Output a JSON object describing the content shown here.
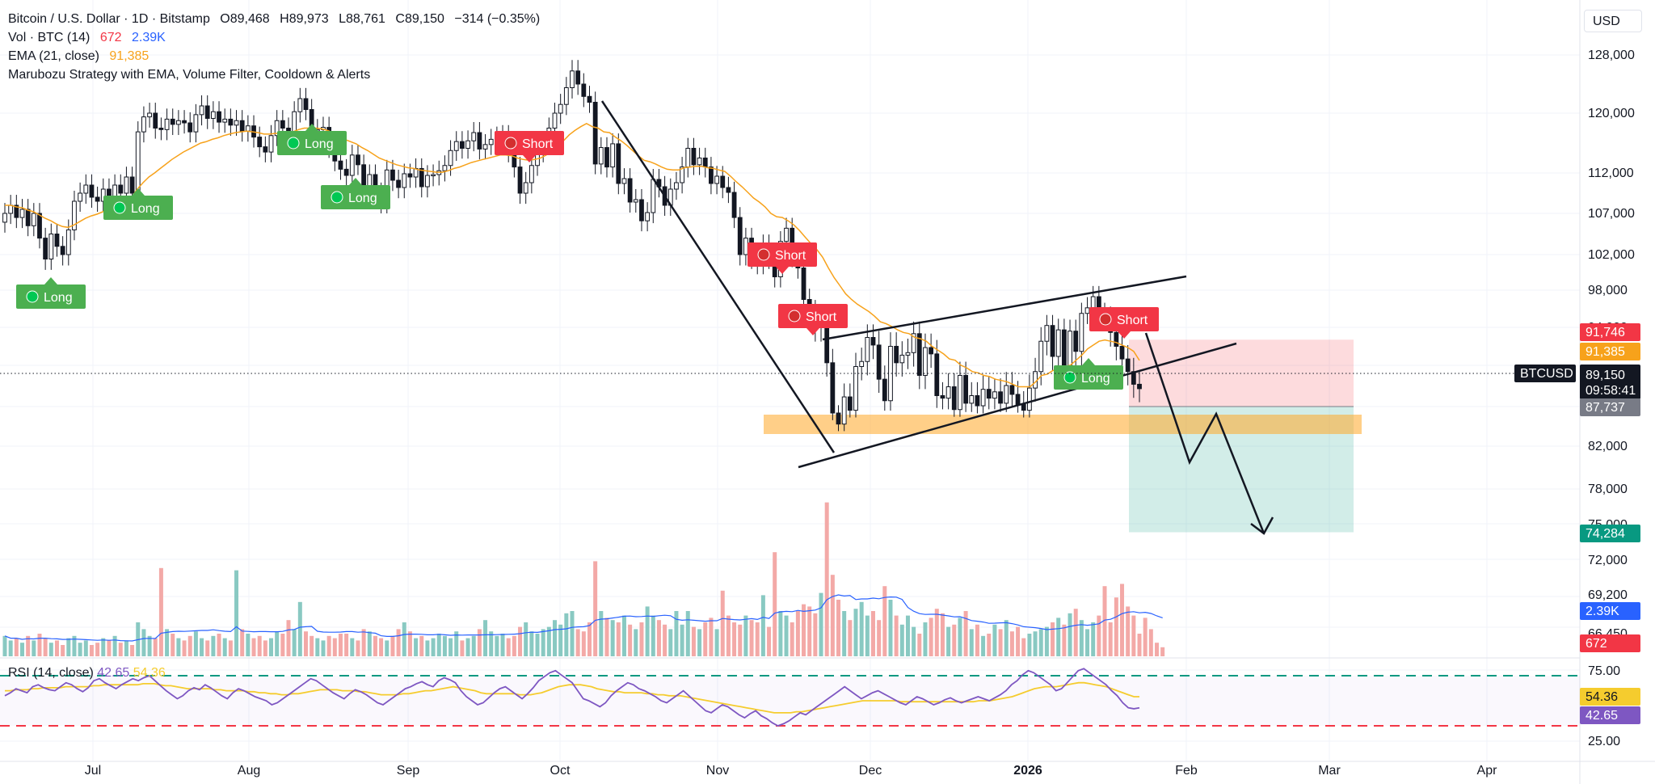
{
  "header": {
    "symbol": "Bitcoin / U.S. Dollar · 1D · Bitstamp",
    "open": "O89,468",
    "high": "H89,973",
    "low": "L88,761",
    "close": "C89,150",
    "change": "−314 (−0.35%)",
    "vol_label": "Vol · BTC (14)",
    "vol_value": "672",
    "vol_ma": "2.39K",
    "ema_label": "EMA (21, close)",
    "ema_value": "91,385",
    "strategy_label": "Marubozu Strategy with EMA, Volume Filter, Cooldown & Alerts"
  },
  "currency": "USD",
  "rsi": {
    "label": "RSI (14, close)",
    "value": "42.65",
    "ma_value": "54.36",
    "axis": [
      "75.00",
      "25.00"
    ],
    "rsi_series": [
      55,
      58,
      62,
      60,
      58,
      64,
      66,
      63,
      61,
      60,
      64,
      68,
      66,
      62,
      59,
      63,
      70,
      72,
      68,
      65,
      62,
      66,
      69,
      72,
      70,
      73,
      75,
      70,
      65,
      60,
      56,
      52,
      55,
      60,
      63,
      61,
      66,
      63,
      59,
      55,
      52,
      58,
      62,
      60,
      57,
      54,
      52,
      50,
      46,
      48,
      52,
      56,
      60,
      64,
      68,
      72,
      70,
      66,
      62,
      58,
      55,
      52,
      57,
      61,
      59,
      56,
      52,
      48,
      46,
      50,
      54,
      58,
      62,
      64,
      67,
      69,
      66,
      64,
      70,
      73,
      71,
      68,
      60,
      54,
      50,
      46,
      48,
      53,
      58,
      62,
      64,
      60,
      56,
      52,
      57,
      63,
      70,
      74,
      78,
      80,
      76,
      72,
      68,
      60,
      52,
      50,
      47,
      44,
      48,
      55,
      60,
      64,
      68,
      66,
      62,
      60,
      57,
      54,
      50,
      48,
      52,
      56,
      60,
      55,
      50,
      45,
      40,
      38,
      42,
      46,
      44,
      40,
      36,
      33,
      37,
      40,
      35,
      32,
      28,
      25,
      27,
      30,
      34,
      38,
      36,
      40,
      44,
      48,
      52,
      56,
      60,
      64,
      60,
      56,
      52,
      55,
      58,
      60,
      57,
      54,
      51,
      48,
      46,
      50,
      54,
      52,
      49,
      46,
      48,
      51,
      53,
      50,
      48,
      50,
      52,
      54,
      52,
      50,
      53,
      56,
      60,
      66,
      70,
      76,
      80,
      78,
      74,
      70,
      66,
      60,
      62,
      68,
      74,
      80,
      82,
      78,
      74,
      70,
      66,
      60,
      55,
      48,
      43,
      42,
      43
    ],
    "ma_series": [
      60,
      60,
      61,
      61,
      61,
      62,
      62,
      63,
      63,
      63,
      63,
      64,
      64,
      64,
      64,
      64,
      65,
      65,
      66,
      66,
      66,
      66,
      66,
      66,
      66,
      67,
      67,
      67,
      66,
      65,
      65,
      64,
      63,
      62,
      62,
      62,
      62,
      62,
      61,
      61,
      60,
      60,
      60,
      60,
      59,
      59,
      58,
      58,
      57,
      57,
      56,
      56,
      57,
      57,
      58,
      59,
      60,
      61,
      61,
      61,
      61,
      60,
      60,
      60,
      59,
      59,
      58,
      57,
      56,
      56,
      56,
      56,
      57,
      57,
      58,
      59,
      60,
      60,
      61,
      62,
      63,
      64,
      63,
      62,
      61,
      60,
      58,
      57,
      57,
      57,
      57,
      57,
      57,
      56,
      56,
      56,
      57,
      58,
      60,
      62,
      64,
      65,
      66,
      66,
      66,
      65,
      64,
      62,
      61,
      60,
      59,
      59,
      58,
      58,
      58,
      58,
      57,
      57,
      56,
      56,
      55,
      55,
      55,
      54,
      53,
      52,
      51,
      50,
      49,
      48,
      47,
      46,
      45,
      44,
      43,
      42,
      41,
      40,
      39,
      38,
      38,
      38,
      38,
      39,
      39,
      40,
      41,
      42,
      43,
      44,
      45,
      46,
      47,
      48,
      49,
      50,
      50,
      50,
      50,
      50,
      50,
      50,
      49,
      49,
      49,
      49,
      49,
      49,
      49,
      49,
      49,
      49,
      49,
      49,
      49,
      49,
      50,
      50,
      50,
      51,
      52,
      53,
      54,
      56,
      58,
      60,
      62,
      63,
      64,
      64,
      64,
      65,
      66,
      67,
      68,
      68,
      67,
      66,
      65,
      64,
      62,
      60,
      58,
      56,
      54,
      54
    ]
  },
  "price_axis": [
    "128,000",
    "120,000",
    "112,000",
    "107,000",
    "102,000",
    "98,000",
    "94,000",
    "87,737",
    "82,000",
    "78,000",
    "75,000",
    "72,000",
    "69,200",
    "66,450"
  ],
  "price_tags": {
    "tp_red": "91,746",
    "ema": "91,385",
    "symbol": "BTCUSD",
    "last": "89,150",
    "countdown": "09:58:41",
    "entry": "87,737",
    "target": "74,284",
    "vol_ma": "2.39K",
    "vol": "672",
    "rsi_ma": "54.36",
    "rsi": "42.65"
  },
  "time_axis": [
    "Jul",
    "Aug",
    "Sep",
    "Oct",
    "Nov",
    "Dec",
    "2026",
    "Feb",
    "Mar",
    "Apr"
  ],
  "signals": [
    {
      "label": "Long",
      "type": "long"
    },
    {
      "label": "Long",
      "type": "long"
    },
    {
      "label": "Long",
      "type": "long"
    },
    {
      "label": "Long",
      "type": "long"
    },
    {
      "label": "Short",
      "type": "short"
    },
    {
      "label": "Short",
      "type": "short"
    },
    {
      "label": "Short",
      "type": "short"
    },
    {
      "label": "Long",
      "type": "long"
    },
    {
      "label": "Short",
      "type": "short"
    }
  ],
  "colors": {
    "up": "#26a69a",
    "down": "#ef5350",
    "up_vol": "#89c9c2",
    "down_vol": "#f3a9a7",
    "ema": "#f7a21b",
    "vol_ma": "#2962ff",
    "rsi": "#7e57c2",
    "rsi_ma": "#f5cc2e",
    "long_label": "#4caf50",
    "short_label": "#f23645"
  },
  "chart_data": {
    "type": "candlestick",
    "series": [
      {
        "name": "Bitcoin / U.S. Dollar",
        "close": [
          107000,
          108000,
          106500,
          107500,
          105500,
          107000,
          104000,
          101500,
          104500,
          103000,
          102000,
          105000,
          108500,
          109500,
          110500,
          109000,
          108500,
          110000,
          108800,
          110500,
          109500,
          111500,
          109500,
          117500,
          119500,
          120000,
          118000,
          117800,
          119200,
          118500,
          119000,
          118700,
          117500,
          119800,
          121000,
          119300,
          120200,
          118800,
          119200,
          118400,
          119000,
          117600,
          118300,
          116800,
          115500,
          114800,
          117000,
          119000,
          118000,
          116800,
          120200,
          122000,
          120500,
          117600,
          117800,
          118100,
          115400,
          113600,
          112500,
          111700,
          114400,
          113100,
          110200,
          111800,
          109500,
          108300,
          112400,
          111100,
          110200,
          111900,
          111500,
          112600,
          110300,
          111700,
          111800,
          112300,
          113000,
          115000,
          116200,
          115300,
          116300,
          117400,
          115200,
          115800,
          116500,
          116800,
          117000,
          114800,
          112800,
          109500,
          110800,
          113000,
          114800,
          116200,
          118000,
          120000,
          121200,
          123500,
          125800,
          124000,
          122300,
          121500,
          113200,
          115400,
          112800,
          115900,
          110700,
          111300,
          108400,
          108700,
          106100,
          107100,
          111200,
          110300,
          108000,
          110000,
          110800,
          112800,
          115300,
          113100,
          114000,
          112800,
          110700,
          111600,
          110200,
          109600,
          106500,
          102000,
          104000,
          101600,
          101000,
          103200,
          101600,
          99500,
          103600,
          105200,
          101800,
          100500,
          97000,
          95800,
          94000,
          95200,
          91200,
          86800,
          85200,
          88500,
          87200,
          90900,
          91300,
          93200,
          92600,
          89900,
          88200,
          92500,
          91200,
          91800,
          92000,
          93500,
          90200,
          92400,
          91900,
          88600,
          88400,
          89300,
          87300,
          90200,
          88000,
          88600,
          87800,
          89100,
          88400,
          88900,
          88000,
          89400,
          88700,
          87900,
          87200,
          89200,
          90500,
          92900,
          94200,
          91700,
          93800,
          90700,
          93700,
          92100,
          95500,
          96100,
          97300,
          95500,
          95100,
          93600,
          92500,
          91500,
          90500,
          89500,
          89150
        ]
      }
    ],
    "volume": [
      0.9,
      0.7,
      0.8,
      0.6,
      0.9,
      0.7,
      1.0,
      0.8,
      0.6,
      0.7,
      0.5,
      0.8,
      0.9,
      0.6,
      0.7,
      0.5,
      0.6,
      0.8,
      0.7,
      0.9,
      0.6,
      0.7,
      0.5,
      1.5,
      1.2,
      0.9,
      0.8,
      3.9,
      1.2,
      1.0,
      0.8,
      0.7,
      0.9,
      1.1,
      0.8,
      0.7,
      0.9,
      1.0,
      0.8,
      0.7,
      3.8,
      1.2,
      1.0,
      0.8,
      0.9,
      0.7,
      0.8,
      1.1,
      1.0,
      1.6,
      1.2,
      2.4,
      1.1,
      0.9,
      0.8,
      0.7,
      0.9,
      0.8,
      1.0,
      1.0,
      0.8,
      0.7,
      1.2,
      1.1,
      0.9,
      0.8,
      0.7,
      0.9,
      1.2,
      1.5,
      1.1,
      0.8,
      0.9,
      0.7,
      0.8,
      1.0,
      0.9,
      0.8,
      1.1,
      0.7,
      0.8,
      0.9,
      1.2,
      1.6,
      1.1,
      0.9,
      1.0,
      0.8,
      0.9,
      1.3,
      1.5,
      1.1,
      1.0,
      1.2,
      1.3,
      1.6,
      1.4,
      1.9,
      2.0,
      1.2,
      1.1,
      1.5,
      4.2,
      2.0,
      1.7,
      1.6,
      1.5,
      1.8,
      1.4,
      1.2,
      1.5,
      2.2,
      1.8,
      1.6,
      1.4,
      1.2,
      2.0,
      1.4,
      2.0,
      1.3,
      1.2,
      1.5,
      1.7,
      1.2,
      2.9,
      1.8,
      1.5,
      1.4,
      1.8,
      1.6,
      1.5,
      2.7,
      1.3,
      4.6,
      2.0,
      1.8,
      1.5,
      2.0,
      2.3,
      2.2,
      1.9,
      2.8,
      6.8,
      3.6,
      2.5,
      2.0,
      1.6,
      2.1,
      2.4,
      1.8,
      2.0,
      1.6,
      3.1,
      2.5,
      1.8,
      1.4,
      1.8,
      1.3,
      1.0,
      1.5,
      1.7,
      2.1,
      1.9,
      1.3,
      1.4,
      1.7,
      2.0,
      1.2,
      1.4,
      0.9,
      1.0,
      1.4,
      1.2,
      1.6,
      1.1,
      1.3,
      0.8,
      1.0,
      1.1,
      1.2,
      1.3,
      1.5,
      1.7,
      1.4,
      1.9,
      2.1,
      1.6,
      1.2,
      1.5,
      1.8,
      3.1,
      1.5,
      2.6,
      3.2,
      2.2,
      1.8,
      1.0,
      1.7,
      1.2,
      0.6,
      0.4
    ],
    "ema": [
      108000,
      108000,
      107800,
      107700,
      107400,
      107200,
      106800,
      106400,
      106100,
      105700,
      105400,
      105300,
      105600,
      106000,
      106400,
      106700,
      106900,
      107200,
      107500,
      107800,
      108100,
      108400,
      109000,
      110000,
      110800,
      111500,
      112000,
      112600,
      113200,
      113800,
      114300,
      114800,
      115200,
      115600,
      116000,
      116200,
      116500,
      116700,
      117000,
      117200,
      117400,
      117500,
      117600,
      117500,
      117400,
      117200,
      117200,
      117300,
      117300,
      117300,
      117500,
      117800,
      118000,
      118000,
      118000,
      117900,
      117700,
      117400,
      117000,
      116500,
      116200,
      115900,
      115400,
      115000,
      114500,
      114000,
      113700,
      113400,
      113100,
      112900,
      112700,
      112600,
      112400,
      112300,
      112200,
      112100,
      112100,
      112300,
      112600,
      112800,
      113100,
      113400,
      113600,
      113800,
      114000,
      114200,
      114400,
      114400,
      114300,
      114000,
      113800,
      113700,
      113800,
      114000,
      114400,
      114900,
      115500,
      116300,
      117100,
      117700,
      118200,
      118600,
      118200,
      118000,
      117500,
      117400,
      116800,
      116300,
      115700,
      115000,
      114300,
      113700,
      113500,
      113200,
      112800,
      112500,
      112400,
      112400,
      112700,
      112800,
      112900,
      112900,
      112700,
      112600,
      112400,
      112200,
      111600,
      110900,
      110300,
      109600,
      108900,
      108400,
      107800,
      107000,
      106600,
      106500,
      106100,
      105600,
      104900,
      104100,
      103300,
      102600,
      101700,
      100500,
      99400,
      98500,
      97600,
      97000,
      96500,
      96100,
      95700,
      95200,
      94600,
      94400,
      94100,
      93800,
      93600,
      93500,
      93200,
      93100,
      92900,
      92500,
      92200,
      91900,
      91500,
      91400,
      91000,
      90800,
      90500,
      90400,
      90200,
      90100,
      89900,
      89800,
      89700,
      89500,
      89300,
      89300,
      89300,
      89700,
      90200,
      90300,
      90600,
      90600,
      90900,
      91000,
      91400,
      91800,
      92300,
      92600,
      92900,
      93000,
      92900,
      92800,
      92600,
      92400,
      92100,
      91385
    ],
    "zones": {
      "resistance_band": [
        84800,
        85600
      ],
      "short_entry": 87737,
      "short_stop": 91746,
      "short_target": 74284
    }
  }
}
